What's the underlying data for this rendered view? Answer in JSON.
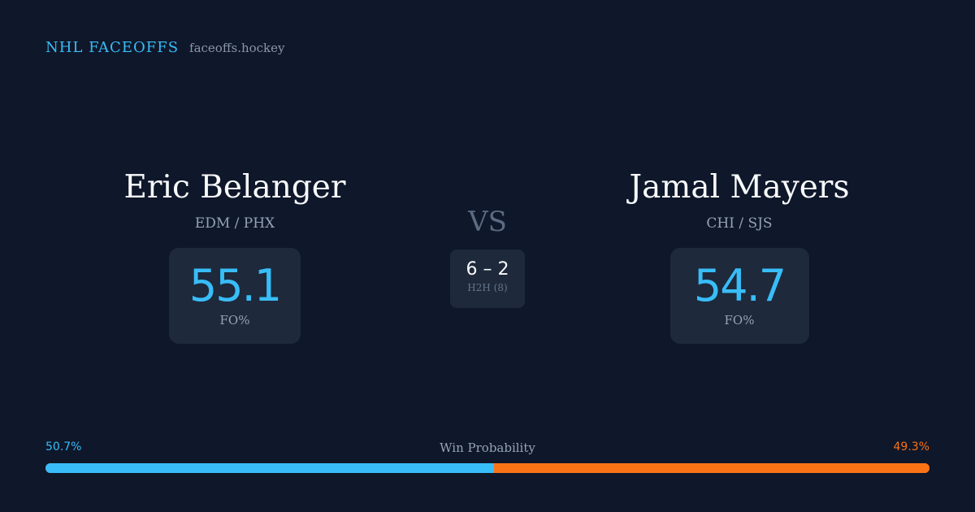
{
  "brand": {
    "name": "NHL FACEOFFS",
    "domain": "faceoffs.hockey"
  },
  "player_left": {
    "name": "Eric Belanger",
    "teams": "EDM / PHX",
    "fo_pct": "55.1",
    "fo_label": "FO%"
  },
  "player_right": {
    "name": "Jamal Mayers",
    "teams": "CHI / SJS",
    "fo_pct": "54.7",
    "fo_label": "FO%"
  },
  "versus": {
    "label": "VS",
    "h2h_score": "6 – 2",
    "h2h_label": "H2H (8)"
  },
  "win_probability": {
    "title": "Win Probability",
    "left_label": "50.7%",
    "right_label": "49.3%",
    "left_fraction": 0.507,
    "right_fraction": 0.493
  },
  "colors": {
    "background": "#0f172a",
    "card": "#1e293b",
    "accent_left": "#38bdf8",
    "accent_right": "#f97316",
    "muted": "#94a3b8"
  }
}
